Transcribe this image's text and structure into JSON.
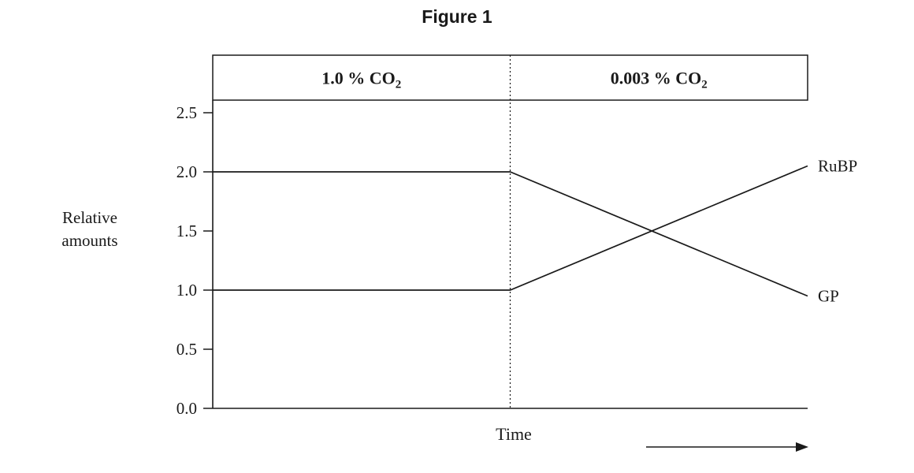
{
  "chart_data": {
    "type": "line",
    "title": "Figure 1",
    "xlabel": "Time",
    "ylabel": "Relative amounts",
    "ylabel_lines": [
      "Relative",
      "amounts"
    ],
    "ylim": [
      0.0,
      2.5
    ],
    "ytick_labels": [
      "0.0",
      "0.5",
      "1.0",
      "1.5",
      "2.0",
      "2.5"
    ],
    "x_domain": [
      0,
      10
    ],
    "transition_x": 5,
    "regions": [
      {
        "label_main": "1.0 % CO",
        "label_sub": "2",
        "x_start": 0,
        "x_end": 5
      },
      {
        "label_main": "0.003 % CO",
        "label_sub": "2",
        "x_start": 5,
        "x_end": 10
      }
    ],
    "series": [
      {
        "name": "RuBP",
        "x": [
          0,
          5,
          10
        ],
        "y": [
          1.0,
          1.0,
          2.05
        ]
      },
      {
        "name": "GP",
        "x": [
          0,
          5,
          10
        ],
        "y": [
          2.0,
          2.0,
          0.95
        ]
      }
    ],
    "grid": false,
    "legend_position": "right-end-labels",
    "line_color": "#1a1a1a",
    "background_color": "#ffffff"
  }
}
